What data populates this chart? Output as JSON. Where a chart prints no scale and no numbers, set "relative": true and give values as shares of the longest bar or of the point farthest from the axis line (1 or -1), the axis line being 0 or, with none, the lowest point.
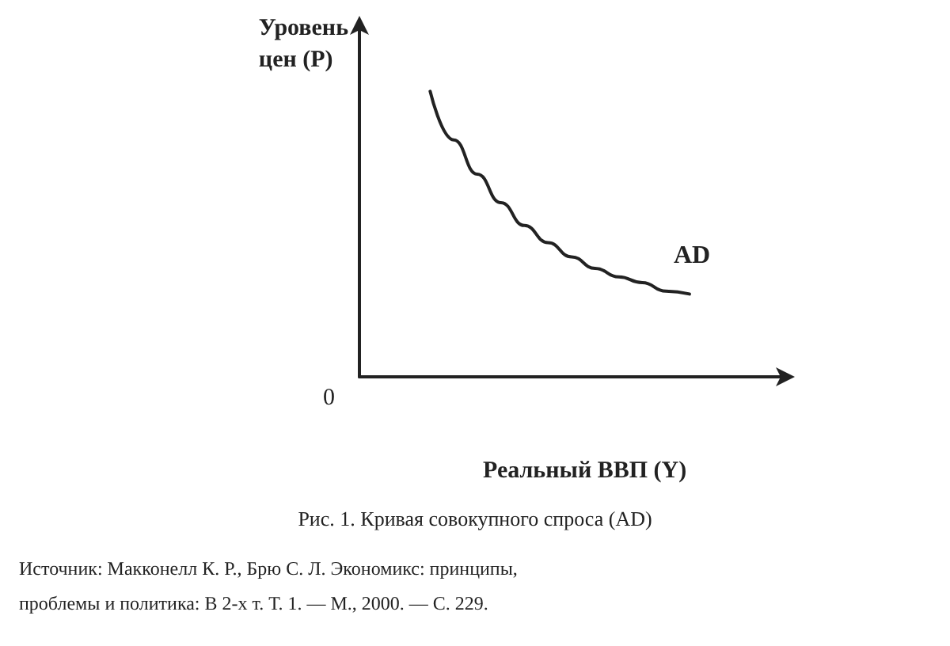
{
  "chart_data": {
    "type": "line",
    "relative": true,
    "title": "Рис. 1. Кривая совокупного спроса (AD)",
    "xlabel": "Реальный ВВП (Y)",
    "ylabel": "Уровень цен (P)",
    "categories": [
      null,
      null,
      null,
      null,
      null,
      null,
      null,
      null,
      null,
      null,
      null,
      null,
      null,
      null,
      null,
      null,
      null,
      null,
      null
    ],
    "series": [
      {
        "name": "AD",
        "color": "#222222",
        "values": [
          null,
          null,
          null,
          1,
          0.83,
          0.71,
          0.61,
          0.53,
          0.47,
          0.42,
          0.38,
          0.35,
          0.33,
          0.3,
          0.29,
          null,
          null,
          null,
          null
        ]
      }
    ],
    "marker": "none",
    "line_style": "solid",
    "grid": false,
    "legend": false,
    "annotations": [
      "0",
      "Источник: Макконелл К. Р., Брю С. Л. Экономикс: принципы, проблемы и политика: В 2-х т. Т. 1. — М., 2000. — С. 229."
    ]
  }
}
